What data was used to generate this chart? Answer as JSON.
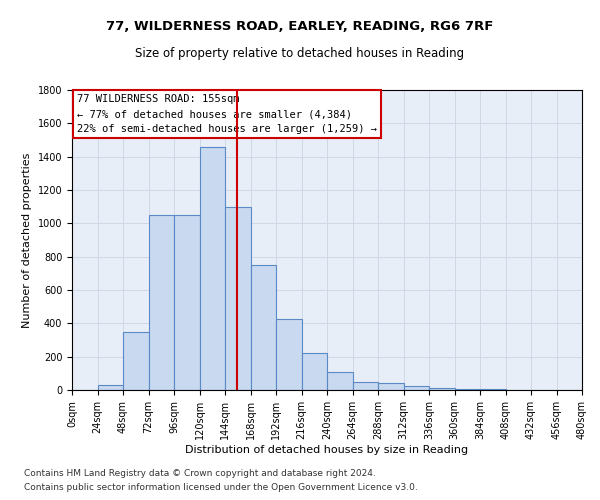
{
  "title1": "77, WILDERNESS ROAD, EARLEY, READING, RG6 7RF",
  "title2": "Size of property relative to detached houses in Reading",
  "xlabel": "Distribution of detached houses by size in Reading",
  "ylabel": "Number of detached properties",
  "bin_edges": [
    0,
    24,
    48,
    72,
    96,
    120,
    144,
    168,
    192,
    216,
    240,
    264,
    288,
    312,
    336,
    360,
    384,
    408,
    432,
    456,
    480
  ],
  "bar_heights": [
    0,
    30,
    350,
    1050,
    1050,
    1460,
    1100,
    750,
    425,
    225,
    110,
    50,
    40,
    25,
    15,
    5,
    5,
    2,
    1,
    0
  ],
  "bar_color": "#c9d9f0",
  "bar_edge_color": "#5a8ac6",
  "property_size": 155,
  "vline_color": "#cc0000",
  "annotation_text": "77 WILDERNESS ROAD: 155sqm\n← 77% of detached houses are smaller (4,384)\n22% of semi-detached houses are larger (1,259) →",
  "annotation_box_color": "#ffffff",
  "annotation_box_edge": "#cc0000",
  "ylim": [
    0,
    1800
  ],
  "yticks": [
    0,
    200,
    400,
    600,
    800,
    1000,
    1200,
    1400,
    1600,
    1800
  ],
  "grid_color": "#d0d8e8",
  "background_color": "#e8eef8",
  "footer1": "Contains HM Land Registry data © Crown copyright and database right 2024.",
  "footer2": "Contains public sector information licensed under the Open Government Licence v3.0.",
  "title1_fontsize": 9.5,
  "title2_fontsize": 8.5,
  "xlabel_fontsize": 8,
  "ylabel_fontsize": 8,
  "tick_fontsize": 7,
  "annotation_fontsize": 7.5,
  "footer_fontsize": 6.5
}
